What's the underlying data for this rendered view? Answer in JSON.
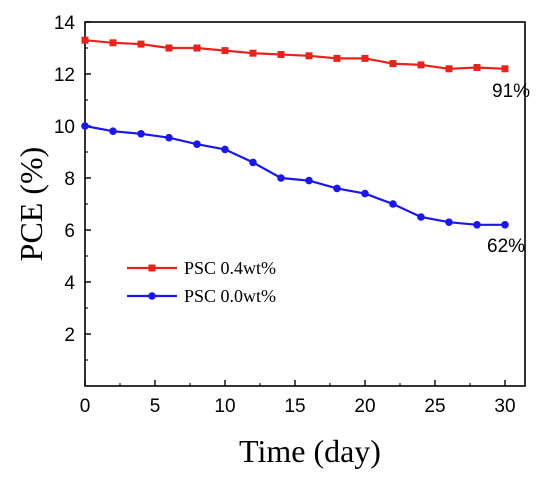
{
  "chart_data": {
    "type": "line",
    "xlabel": "Time (day)",
    "ylabel": "PCE (%)",
    "xlim": [
      0,
      30
    ],
    "ylim": [
      0,
      14
    ],
    "x_ticks": [
      "0",
      "5",
      "10",
      "15",
      "20",
      "25",
      "30"
    ],
    "y_ticks": [
      "2",
      "4",
      "6",
      "8",
      "10",
      "12",
      "14"
    ],
    "x": [
      0,
      2,
      4,
      6,
      8,
      10,
      12,
      14,
      16,
      18,
      20,
      22,
      24,
      26,
      28,
      30
    ],
    "series": [
      {
        "name": "PSC 0.4wt%",
        "color": "#e8231e",
        "marker": "square",
        "values": [
          13.3,
          13.2,
          13.15,
          13.0,
          13.0,
          12.9,
          12.8,
          12.75,
          12.7,
          12.6,
          12.6,
          12.4,
          12.35,
          12.2,
          12.25,
          12.2
        ]
      },
      {
        "name": "PSC 0.0wt%",
        "color": "#1a17e8",
        "marker": "circle",
        "values": [
          10.0,
          9.8,
          9.7,
          9.55,
          9.3,
          9.1,
          8.6,
          8.0,
          7.9,
          7.6,
          7.4,
          7.0,
          6.5,
          6.3,
          6.2,
          6.2
        ]
      }
    ],
    "annotations": [
      "91%",
      "62%"
    ],
    "legend_position": "lower-left",
    "grid": false
  }
}
